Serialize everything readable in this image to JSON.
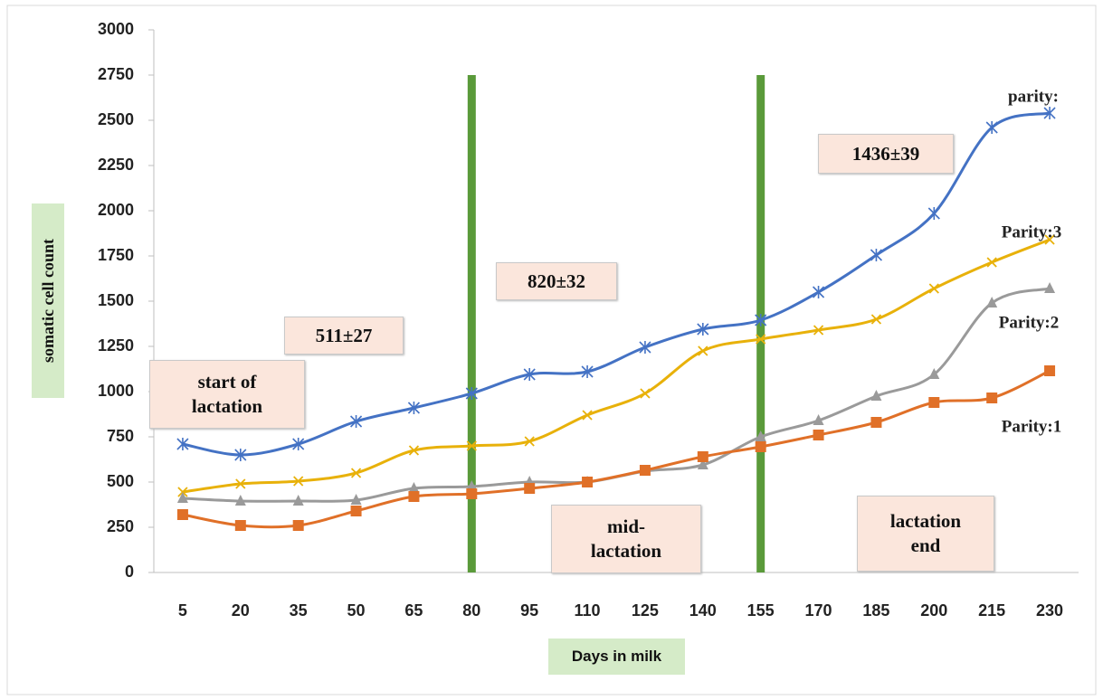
{
  "chart_data": {
    "type": "line",
    "x_label": "Days in milk",
    "y_label": "somatic cell count",
    "categories": [
      "5",
      "20",
      "35",
      "50",
      "65",
      "80",
      "95",
      "110",
      "125",
      "140",
      "155",
      "170",
      "185",
      "200",
      "215",
      "230"
    ],
    "ylim": [
      0,
      3000
    ],
    "yticks": [
      0,
      250,
      500,
      750,
      1000,
      1250,
      1500,
      1750,
      2000,
      2250,
      2500,
      2750,
      3000
    ],
    "series": [
      {
        "name": "parity:",
        "color": "#4472c4",
        "marker": "star",
        "values": [
          710,
          650,
          710,
          835,
          910,
          990,
          1095,
          1110,
          1245,
          1345,
          1395,
          1550,
          1755,
          1985,
          2460,
          2540
        ]
      },
      {
        "name": "Parity:3",
        "color": "#e8b10a",
        "marker": "x",
        "values": [
          445,
          490,
          505,
          550,
          675,
          700,
          725,
          870,
          990,
          1225,
          1290,
          1340,
          1400,
          1570,
          1715,
          1840
        ]
      },
      {
        "name": "Parity:2",
        "color": "#9a9a9a",
        "marker": "triangle",
        "values": [
          410,
          395,
          395,
          400,
          465,
          475,
          500,
          500,
          560,
          595,
          750,
          840,
          975,
          1095,
          1490,
          1570
        ]
      },
      {
        "name": "Parity:1",
        "color": "#e07028",
        "marker": "square",
        "values": [
          320,
          260,
          260,
          340,
          420,
          435,
          465,
          500,
          565,
          640,
          695,
          760,
          830,
          940,
          965,
          1115
        ]
      }
    ],
    "dividers": [
      {
        "category": "80",
        "top": 2750,
        "color": "#5a9a3a"
      },
      {
        "category": "155",
        "top": 2750,
        "color": "#5a9a3a"
      }
    ],
    "annotations": [
      {
        "lines": [
          "start of",
          "lactation"
        ]
      },
      {
        "lines": [
          "511±27"
        ]
      },
      {
        "lines": [
          "820±32"
        ]
      },
      {
        "lines": [
          "1436±39"
        ]
      },
      {
        "lines": [
          "mid-",
          "lactation"
        ]
      },
      {
        "lines": [
          "lactation",
          "end"
        ]
      }
    ]
  }
}
